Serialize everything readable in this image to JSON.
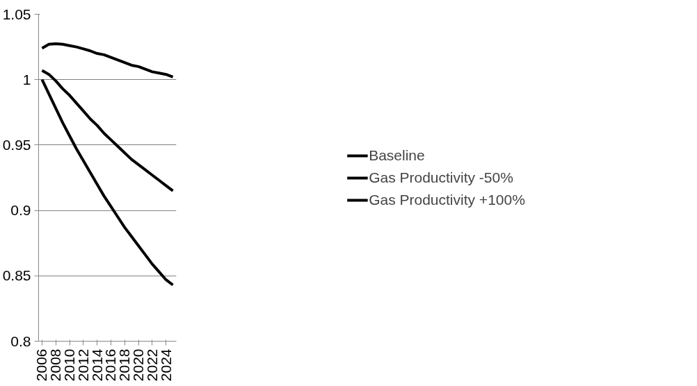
{
  "chart_data": {
    "type": "line",
    "x": [
      2006,
      2007,
      2008,
      2009,
      2010,
      2011,
      2012,
      2013,
      2014,
      2015,
      2016,
      2017,
      2018,
      2019,
      2020,
      2021,
      2022,
      2023,
      2024,
      2025
    ],
    "series": [
      {
        "name": "Baseline",
        "color": "#000000",
        "values": [
          1.024,
          1.027,
          1.0275,
          1.027,
          1.026,
          1.025,
          1.0235,
          1.022,
          1.02,
          1.019,
          1.017,
          1.015,
          1.013,
          1.011,
          1.01,
          1.008,
          1.006,
          1.005,
          1.004,
          1.002
        ]
      },
      {
        "name": "Gas Productivity -50%",
        "color": "#000000",
        "values": [
          1.007,
          1.004,
          0.999,
          0.993,
          0.988,
          0.982,
          0.976,
          0.97,
          0.965,
          0.959,
          0.954,
          0.949,
          0.944,
          0.939,
          0.935,
          0.931,
          0.927,
          0.923,
          0.919,
          0.915
        ]
      },
      {
        "name": "Gas Productivity +100%",
        "color": "#000000",
        "values": [
          1.0,
          0.989,
          0.978,
          0.967,
          0.957,
          0.947,
          0.938,
          0.929,
          0.92,
          0.911,
          0.903,
          0.895,
          0.887,
          0.88,
          0.873,
          0.866,
          0.859,
          0.853,
          0.847,
          0.843
        ]
      }
    ],
    "xlim": [
      2005.5,
      2025.5
    ],
    "xticks": [
      2006,
      2008,
      2010,
      2012,
      2014,
      2016,
      2018,
      2020,
      2022,
      2024
    ],
    "ylim": [
      0.8,
      1.05
    ],
    "yticks": [
      0.8,
      0.85,
      0.9,
      0.95,
      1,
      1.05
    ],
    "grid": "y",
    "legend": "right",
    "marker": "none",
    "line_style": "solid"
  }
}
